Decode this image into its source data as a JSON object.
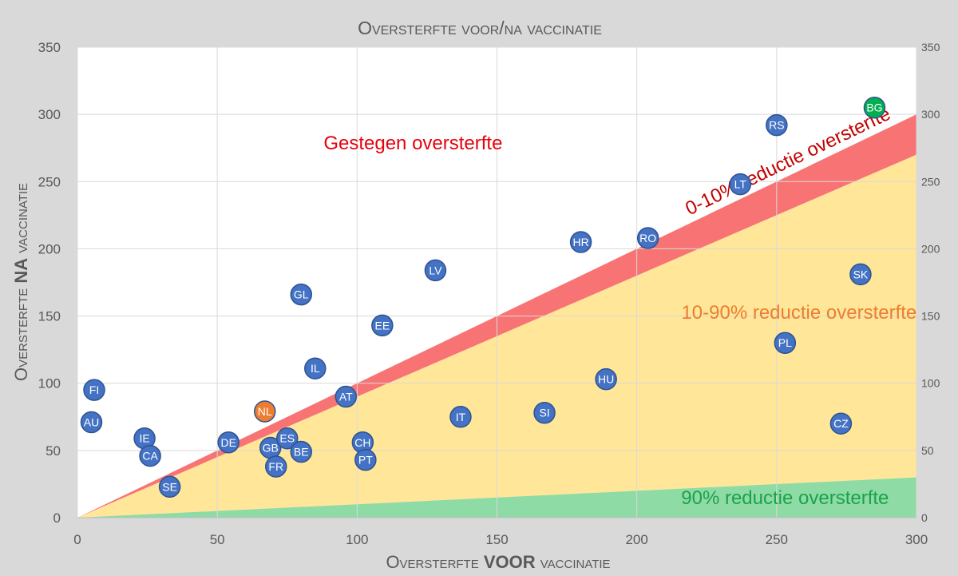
{
  "chart_data": {
    "type": "scatter",
    "title": "Oversterfte voor/na vaccinatie",
    "xlabel": {
      "pre": "Oversterfte ",
      "bold": "VOOR",
      "post": " vaccinatie"
    },
    "ylabel": {
      "pre": "Oversterfte ",
      "bold": "NA",
      "post": " vaccinatie"
    },
    "xlim": [
      0,
      300
    ],
    "ylim": [
      0,
      350
    ],
    "x_ticks": [
      0,
      50,
      100,
      150,
      200,
      250,
      300
    ],
    "y_ticks": [
      0,
      50,
      100,
      150,
      200,
      250,
      300,
      350
    ],
    "grid": true,
    "y_axis_right_mirror": true,
    "regions": [
      {
        "name": "Gestegen oversterfte",
        "color": "#ff0000",
        "label_color": "#e8000b",
        "fill": "none",
        "bounds": "above y = x",
        "rotate": false,
        "anchor": [
          120,
          274
        ]
      },
      {
        "name": "0-10% reductie oversterfte",
        "color": "#f87474",
        "label_color": "#c40000",
        "bounds": "0.9x ≤ y ≤ x",
        "ratio_low": 0.9,
        "ratio_high": 1.0,
        "rotate": true,
        "anchor": [
          255,
          261
        ]
      },
      {
        "name": "10-90% reductie oversterfte",
        "color": "#ffe699",
        "label_color": "#ed7d31",
        "bounds": "0.1x ≤ y ≤ 0.9x",
        "ratio_low": 0.1,
        "ratio_high": 0.9,
        "rotate": false,
        "anchor": [
          258,
          148
        ]
      },
      {
        "name": "90% reductie oversterfte",
        "color": "#8fdba5",
        "label_color": "#1aa34a",
        "bounds": "0 ≤ y ≤ 0.1x",
        "ratio_low": 0.0,
        "ratio_high": 0.1,
        "rotate": false,
        "anchor": [
          253,
          10
        ]
      }
    ],
    "points": [
      {
        "label": "FI",
        "x": 6,
        "y": 95,
        "color": "#4472c4"
      },
      {
        "label": "AU",
        "x": 5,
        "y": 71,
        "color": "#4472c4"
      },
      {
        "label": "IE",
        "x": 24,
        "y": 59,
        "color": "#4472c4"
      },
      {
        "label": "CA",
        "x": 26,
        "y": 46,
        "color": "#4472c4"
      },
      {
        "label": "SE",
        "x": 33,
        "y": 23,
        "color": "#4472c4"
      },
      {
        "label": "DE",
        "x": 54,
        "y": 56,
        "color": "#4472c4"
      },
      {
        "label": "NL",
        "x": 67,
        "y": 79,
        "color": "#ed7d31"
      },
      {
        "label": "GB",
        "x": 69,
        "y": 52,
        "color": "#4472c4"
      },
      {
        "label": "FR",
        "x": 71,
        "y": 38,
        "color": "#4472c4"
      },
      {
        "label": "ES",
        "x": 75,
        "y": 59,
        "color": "#4472c4"
      },
      {
        "label": "BE",
        "x": 80,
        "y": 49,
        "color": "#4472c4"
      },
      {
        "label": "GL",
        "x": 80,
        "y": 166,
        "color": "#4472c4"
      },
      {
        "label": "IL",
        "x": 85,
        "y": 111,
        "color": "#4472c4"
      },
      {
        "label": "AT",
        "x": 96,
        "y": 90,
        "color": "#4472c4"
      },
      {
        "label": "CH",
        "x": 102,
        "y": 56,
        "color": "#4472c4"
      },
      {
        "label": "PT",
        "x": 103,
        "y": 43,
        "color": "#4472c4"
      },
      {
        "label": "EE",
        "x": 109,
        "y": 143,
        "color": "#4472c4"
      },
      {
        "label": "LV",
        "x": 128,
        "y": 184,
        "color": "#4472c4"
      },
      {
        "label": "IT",
        "x": 137,
        "y": 75,
        "color": "#4472c4"
      },
      {
        "label": "SI",
        "x": 167,
        "y": 78,
        "color": "#4472c4"
      },
      {
        "label": "HR",
        "x": 180,
        "y": 205,
        "color": "#4472c4"
      },
      {
        "label": "HU",
        "x": 189,
        "y": 103,
        "color": "#4472c4"
      },
      {
        "label": "RO",
        "x": 204,
        "y": 208,
        "color": "#4472c4"
      },
      {
        "label": "LT",
        "x": 237,
        "y": 248,
        "color": "#4472c4"
      },
      {
        "label": "RS",
        "x": 250,
        "y": 292,
        "color": "#4472c4"
      },
      {
        "label": "PL",
        "x": 253,
        "y": 130,
        "color": "#4472c4"
      },
      {
        "label": "CZ",
        "x": 273,
        "y": 70,
        "color": "#4472c4"
      },
      {
        "label": "SK",
        "x": 280,
        "y": 181,
        "color": "#4472c4"
      },
      {
        "label": "BG",
        "x": 285,
        "y": 305,
        "color": "#00b050"
      }
    ]
  }
}
